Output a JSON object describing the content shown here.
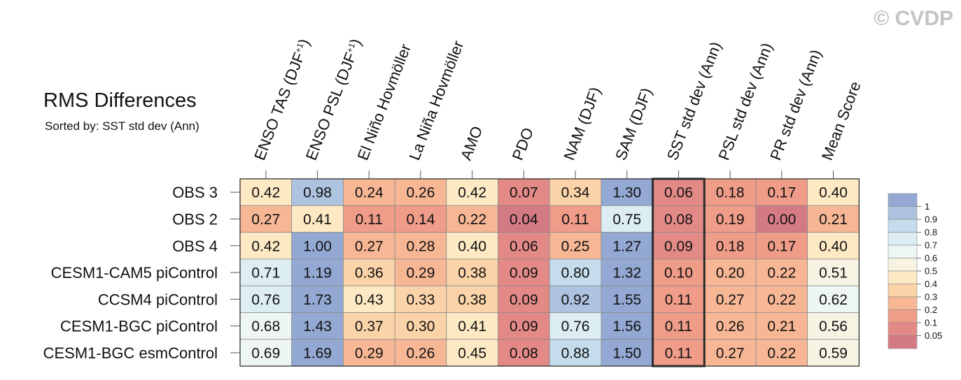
{
  "watermark": "© CVDP",
  "chart_data": {
    "type": "heatmap",
    "title": "RMS Differences",
    "subtitle": "Sorted by: SST std dev (Ann)",
    "columns": [
      "ENSO TAS (DJF+1)",
      "ENSO PSL (DJF+1)",
      "El Niño Hovmöller",
      "La Niña Hovmöller",
      "AMO",
      "PDO",
      "NAM (DJF)",
      "SAM (DJF)",
      "SST std dev (Ann)",
      "PSL std dev (Ann)",
      "PR std dev (Ann)",
      "Mean Score"
    ],
    "rows": [
      "OBS 3",
      "OBS 2",
      "OBS 4",
      "CESM1-CAM5 piControl",
      "CCSM4 piControl",
      "CESM1-BGC piControl",
      "CESM1-BGC esmControl"
    ],
    "values": [
      [
        0.42,
        0.98,
        0.24,
        0.26,
        0.42,
        0.07,
        0.34,
        1.3,
        0.06,
        0.18,
        0.17,
        0.4
      ],
      [
        0.27,
        0.41,
        0.11,
        0.14,
        0.22,
        0.04,
        0.11,
        0.75,
        0.08,
        0.19,
        0.0,
        0.21
      ],
      [
        0.42,
        1.0,
        0.27,
        0.28,
        0.4,
        0.06,
        0.25,
        1.27,
        0.09,
        0.18,
        0.17,
        0.4
      ],
      [
        0.71,
        1.19,
        0.36,
        0.29,
        0.38,
        0.09,
        0.8,
        1.32,
        0.1,
        0.2,
        0.22,
        0.51
      ],
      [
        0.76,
        1.73,
        0.43,
        0.33,
        0.38,
        0.09,
        0.92,
        1.55,
        0.11,
        0.27,
        0.22,
        0.62
      ],
      [
        0.68,
        1.43,
        0.37,
        0.3,
        0.41,
        0.09,
        0.76,
        1.56,
        0.11,
        0.26,
        0.21,
        0.56
      ],
      [
        0.69,
        1.69,
        0.29,
        0.26,
        0.45,
        0.08,
        0.88,
        1.5,
        0.11,
        0.27,
        0.22,
        0.59
      ]
    ],
    "highlighted_column": "SST std dev (Ann)",
    "colorbar": {
      "levels": [
        "1",
        "0.9",
        "0.8",
        "0.7",
        "0.6",
        "0.5",
        "0.4",
        "0.3",
        "0.2",
        "0.1",
        "0.05"
      ],
      "thresholds": [
        1,
        0.9,
        0.8,
        0.7,
        0.6,
        0.5,
        0.4,
        0.3,
        0.2,
        0.1,
        0.05
      ],
      "colors": [
        "#93a8d2",
        "#aec3df",
        "#c4dcec",
        "#dcedf4",
        "#eef6f5",
        "#f8f4e4",
        "#fde9c4",
        "#fbd3a8",
        "#f7b795",
        "#ef9c88",
        "#e38a87",
        "#d47a85"
      ]
    }
  }
}
